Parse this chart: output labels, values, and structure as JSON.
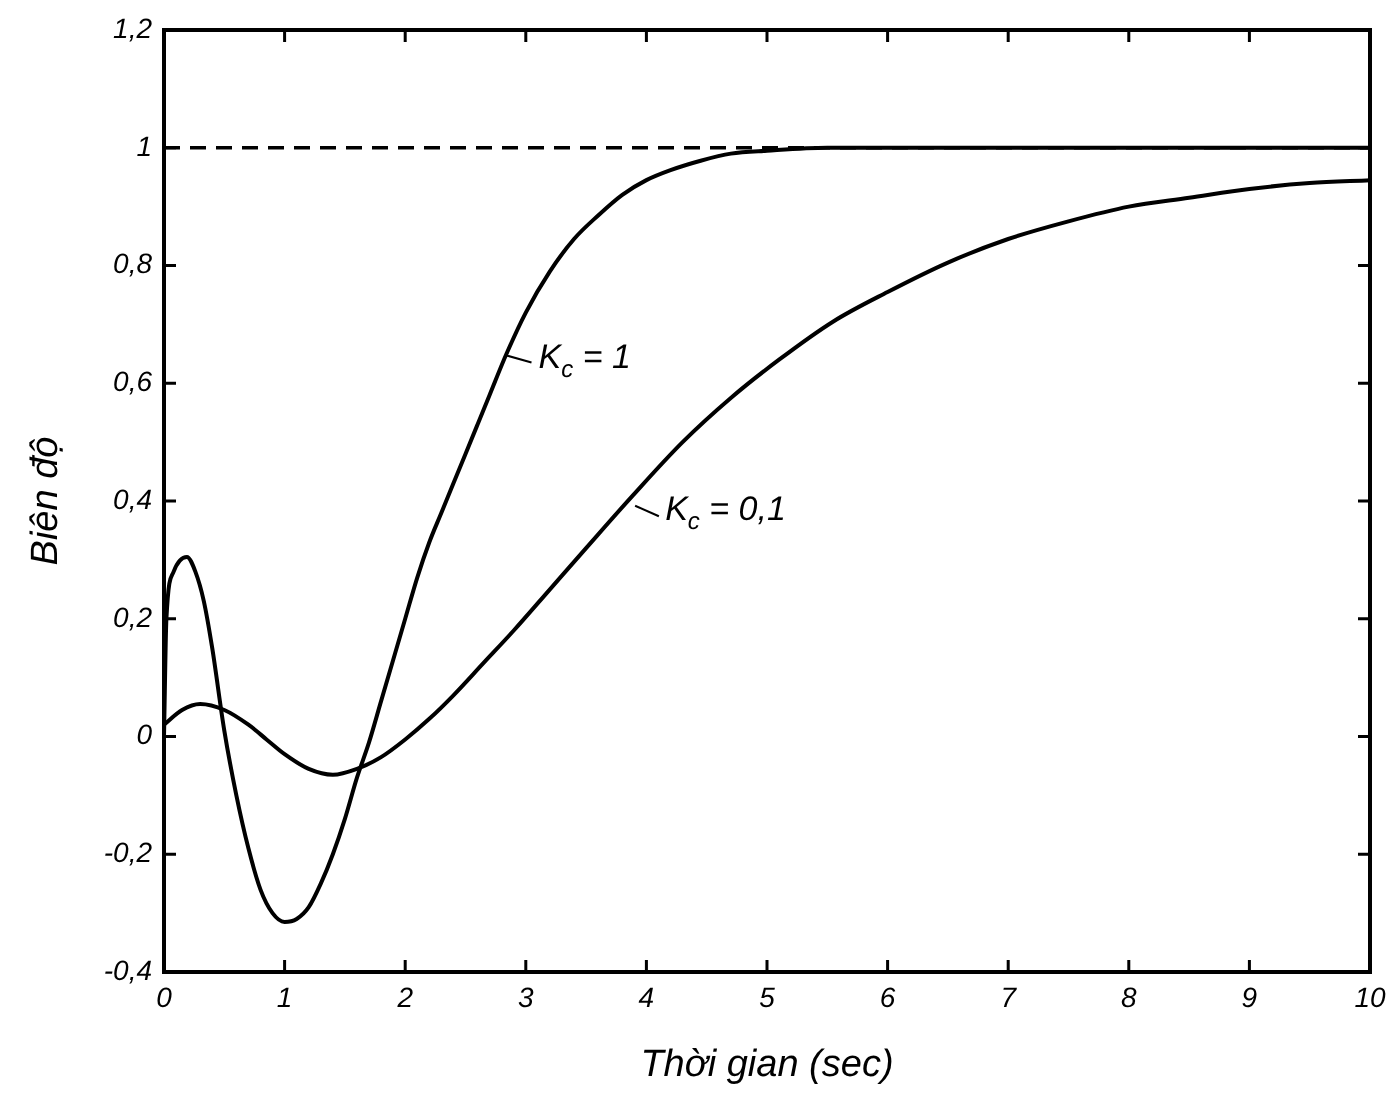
{
  "chart_data": {
    "type": "line",
    "xlabel": "Thời gian (sec)",
    "ylabel": "Biên độ",
    "series": [
      {
        "name": "K$_{c}$ = 1",
        "color": "#000000",
        "x": [
          0,
          0.02,
          0.08,
          0.19,
          0.26,
          0.33,
          0.4,
          0.5,
          0.6,
          0.7,
          0.8,
          0.9,
          1.0,
          1.1,
          1.2,
          1.3,
          1.4,
          1.5,
          1.6,
          1.7,
          1.8,
          1.9,
          2.0,
          2.1,
          2.2,
          2.3,
          2.4,
          2.5,
          2.6,
          2.7,
          2.84,
          3.0,
          3.2,
          3.4,
          3.6,
          3.8,
          4.0,
          4.2,
          4.45,
          4.7,
          5.0,
          5.5,
          6,
          7,
          8,
          9,
          10
        ],
        "values": [
          0,
          0.2,
          0.28,
          0.305,
          0.28,
          0.23,
          0.15,
          0.01,
          -0.1,
          -0.19,
          -0.26,
          -0.3,
          -0.315,
          -0.31,
          -0.29,
          -0.25,
          -0.2,
          -0.14,
          -0.07,
          -0.01,
          0.06,
          0.13,
          0.2,
          0.27,
          0.33,
          0.38,
          0.43,
          0.48,
          0.53,
          0.58,
          0.65,
          0.72,
          0.79,
          0.845,
          0.885,
          0.92,
          0.945,
          0.962,
          0.978,
          0.99,
          0.995,
          1,
          1,
          1,
          1,
          1,
          1
        ]
      },
      {
        "name": "K$_{c}$ = 0,1",
        "color": "#000000",
        "x": [
          0,
          0.15,
          0.3,
          0.5,
          0.7,
          0.85,
          1.0,
          1.2,
          1.4,
          1.6,
          1.8,
          2.0,
          2.2,
          2.4,
          2.65,
          2.9,
          3.2,
          3.5,
          3.89,
          4.3,
          4.7,
          5.1,
          5.55,
          6.0,
          6.5,
          7.0,
          7.5,
          8.0,
          8.5,
          9.0,
          9.5,
          10
        ],
        "values": [
          0.02,
          0.045,
          0.055,
          0.045,
          0.02,
          -0.005,
          -0.03,
          -0.055,
          -0.065,
          -0.055,
          -0.035,
          -0.005,
          0.03,
          0.07,
          0.125,
          0.18,
          0.25,
          0.32,
          0.41,
          0.5,
          0.575,
          0.64,
          0.705,
          0.755,
          0.805,
          0.845,
          0.875,
          0.9,
          0.915,
          0.93,
          0.94,
          0.945
        ]
      }
    ],
    "xlim": [
      0,
      10
    ],
    "xticks": [
      0,
      1,
      2,
      3,
      4,
      5,
      6,
      7,
      8,
      9,
      10
    ],
    "ylim": [
      -0.4,
      1.2
    ],
    "yticks": [
      {
        "value": -0.4,
        "label": "-0,4"
      },
      {
        "value": -0.2,
        "label": "-0,2"
      },
      0,
      {
        "value": 0.2,
        "label": "0,2"
      },
      {
        "value": 0.4,
        "label": "0,4"
      },
      {
        "value": 0.6,
        "label": "0,6"
      },
      {
        "value": 0.8,
        "label": "0,8"
      },
      1,
      {
        "value": 1.2,
        "label": "1,2"
      }
    ],
    "ref_lines": [
      {
        "axis": "y",
        "value": 1,
        "line_style": "dashed",
        "color": "#000000"
      }
    ],
    "marker": "none",
    "line_style": "solid"
  }
}
